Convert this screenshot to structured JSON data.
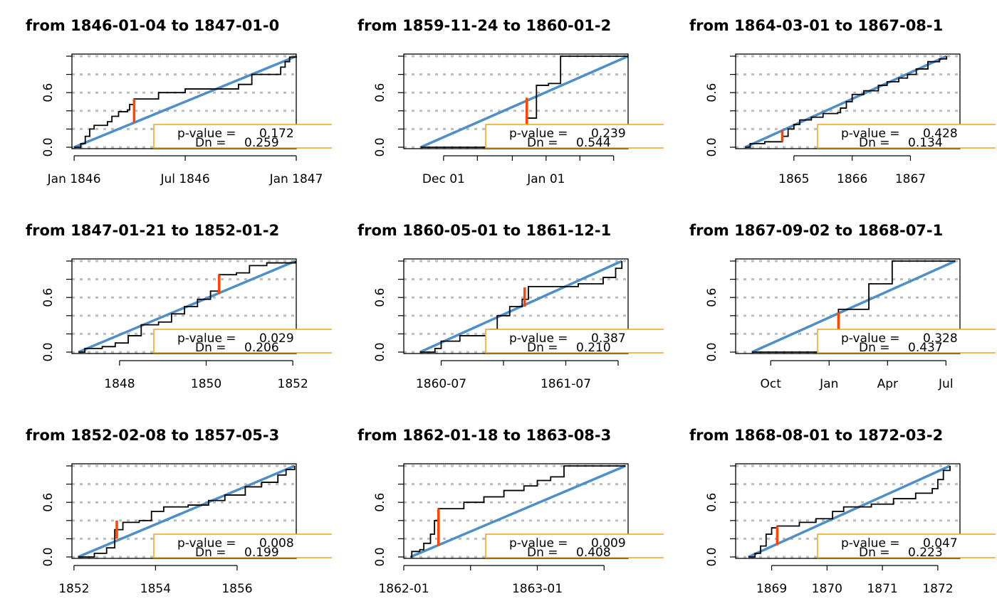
{
  "chart_data": [
    {
      "type": "line",
      "title": "from 1846-01-04 to 1847-01-0",
      "x_range": [
        1846.0,
        1847.0
      ],
      "xlim": [
        1845.99,
        1847.0
      ],
      "ylim": [
        0,
        1
      ],
      "x_ticks": [
        {
          "value": 1846.0,
          "label": "Jan 1846"
        },
        {
          "value": 1846.5,
          "label": "Jul 1846"
        },
        {
          "value": 1847.0,
          "label": "Jan 1847"
        }
      ],
      "y_ticks": [
        {
          "value": 0,
          "label": "0.0"
        },
        {
          "value": 0.2,
          "label": ""
        },
        {
          "value": 0.4,
          "label": ""
        },
        {
          "value": 0.6,
          "label": "0.6"
        },
        {
          "value": 0.8,
          "label": ""
        },
        {
          "value": 1.0,
          "label": ""
        }
      ],
      "grid_y": [
        0,
        0.2,
        0.4,
        0.6,
        0.8,
        1.0
      ],
      "ecdf": [
        [
          1846.0,
          0.0
        ],
        [
          1846.03,
          0.04
        ],
        [
          1846.05,
          0.12
        ],
        [
          1846.07,
          0.2
        ],
        [
          1846.09,
          0.24
        ],
        [
          1846.15,
          0.28
        ],
        [
          1846.17,
          0.34
        ],
        [
          1846.2,
          0.39
        ],
        [
          1846.24,
          0.41
        ],
        [
          1846.25,
          0.47
        ],
        [
          1846.27,
          0.53
        ],
        [
          1846.38,
          0.6
        ],
        [
          1846.5,
          0.64
        ],
        [
          1846.74,
          0.69
        ],
        [
          1846.8,
          0.8
        ],
        [
          1846.93,
          0.88
        ],
        [
          1846.95,
          0.94
        ],
        [
          1846.97,
          0.99
        ],
        [
          1847.0,
          1.0
        ]
      ],
      "dn_x": 1846.27,
      "dn_range": [
        0.27,
        0.53
      ],
      "legend": {
        "p_label": "p-value = ",
        "p_value": "0.172",
        "dn_label": "Dn = ",
        "dn_value": "0.259"
      }
    },
    {
      "type": "line",
      "title": "from 1859-11-24 to 1860-01-2",
      "x_range": [
        1859.899,
        1860.071
      ],
      "xlim": [
        1859.885,
        1860.071
      ],
      "ylim": [
        0,
        1
      ],
      "x_ticks": [
        {
          "value": 1859.918,
          "label": "Dec 01"
        },
        {
          "value": 1860.003,
          "label": "Jan 01"
        }
      ],
      "y_ticks": [
        {
          "value": 0,
          "label": "0.0"
        },
        {
          "value": 0.2,
          "label": ""
        },
        {
          "value": 0.4,
          "label": ""
        },
        {
          "value": 0.6,
          "label": "0.6"
        },
        {
          "value": 0.8,
          "label": ""
        },
        {
          "value": 1.0,
          "label": ""
        }
      ],
      "extra_x_ticks": [
        1859.946,
        1859.975,
        1860.031,
        1860.059
      ],
      "grid_y": [
        0,
        0.2,
        0.4,
        0.6,
        0.8,
        1.0
      ],
      "ecdf": [
        [
          1859.899,
          0.0
        ],
        [
          1859.987,
          0.0
        ],
        [
          1859.987,
          0.32
        ],
        [
          1859.995,
          0.32
        ],
        [
          1859.995,
          0.68
        ],
        [
          1860.005,
          0.68
        ],
        [
          1860.005,
          0.7
        ],
        [
          1860.015,
          0.7
        ],
        [
          1860.015,
          1.0
        ],
        [
          1860.071,
          1.0
        ]
      ],
      "dn_x": 1859.987,
      "dn_range": [
        0.0,
        0.544
      ],
      "legend": {
        "p_label": "p-value = ",
        "p_value": "0.239",
        "dn_label": "Dn = ",
        "dn_value": "0.544"
      }
    },
    {
      "type": "line",
      "title": "from 1864-03-01 to 1867-08-1",
      "x_range": [
        1864.164,
        1867.62
      ],
      "xlim": [
        1864.0,
        1867.85
      ],
      "ylim": [
        0,
        1
      ],
      "x_ticks": [
        {
          "value": 1865,
          "label": "1865"
        },
        {
          "value": 1866,
          "label": "1866"
        },
        {
          "value": 1867,
          "label": "1867"
        }
      ],
      "y_ticks": [
        {
          "value": 0,
          "label": "0.0"
        },
        {
          "value": 0.2,
          "label": ""
        },
        {
          "value": 0.4,
          "label": ""
        },
        {
          "value": 0.6,
          "label": "0.6"
        },
        {
          "value": 0.8,
          "label": ""
        },
        {
          "value": 1.0,
          "label": ""
        }
      ],
      "grid_y": [
        0,
        0.2,
        0.4,
        0.6,
        0.8,
        1.0
      ],
      "ecdf": [
        [
          1864.164,
          0.0
        ],
        [
          1864.25,
          0.04
        ],
        [
          1864.45,
          0.04
        ],
        [
          1864.5,
          0.06
        ],
        [
          1864.75,
          0.06
        ],
        [
          1864.8,
          0.12
        ],
        [
          1864.9,
          0.2
        ],
        [
          1865.0,
          0.25
        ],
        [
          1865.1,
          0.3
        ],
        [
          1865.3,
          0.33
        ],
        [
          1865.5,
          0.37
        ],
        [
          1865.75,
          0.38
        ],
        [
          1865.8,
          0.43
        ],
        [
          1865.9,
          0.5
        ],
        [
          1866.0,
          0.58
        ],
        [
          1866.2,
          0.62
        ],
        [
          1866.45,
          0.68
        ],
        [
          1866.6,
          0.72
        ],
        [
          1866.8,
          0.76
        ],
        [
          1866.95,
          0.8
        ],
        [
          1867.1,
          0.86
        ],
        [
          1867.3,
          0.94
        ],
        [
          1867.5,
          0.97
        ],
        [
          1867.62,
          1.0
        ]
      ],
      "dn_x": 1864.8,
      "dn_range": [
        0.06,
        0.19
      ],
      "legend": {
        "p_label": "p-value = ",
        "p_value": "0.428",
        "dn_label": "Dn = ",
        "dn_value": "0.134"
      }
    },
    {
      "type": "line",
      "title": "from 1847-01-21 to 1852-01-2",
      "x_range": [
        1847.05,
        1852.06
      ],
      "xlim": [
        1846.9,
        1852.08
      ],
      "ylim": [
        0,
        1
      ],
      "x_ticks": [
        {
          "value": 1848,
          "label": "1848"
        },
        {
          "value": 1850,
          "label": "1850"
        },
        {
          "value": 1852,
          "label": "1852"
        }
      ],
      "y_ticks": [
        {
          "value": 0,
          "label": "0.0"
        },
        {
          "value": 0.2,
          "label": ""
        },
        {
          "value": 0.4,
          "label": ""
        },
        {
          "value": 0.6,
          "label": "0.6"
        },
        {
          "value": 0.8,
          "label": ""
        },
        {
          "value": 1.0,
          "label": ""
        }
      ],
      "grid_y": [
        0,
        0.2,
        0.4,
        0.6,
        0.8,
        1.0
      ],
      "ecdf": [
        [
          1847.05,
          0.0
        ],
        [
          1847.2,
          0.04
        ],
        [
          1847.6,
          0.06
        ],
        [
          1847.9,
          0.1
        ],
        [
          1848.2,
          0.18
        ],
        [
          1848.5,
          0.3
        ],
        [
          1848.9,
          0.33
        ],
        [
          1849.2,
          0.42
        ],
        [
          1849.5,
          0.5
        ],
        [
          1849.8,
          0.58
        ],
        [
          1850.1,
          0.67
        ],
        [
          1850.3,
          0.85
        ],
        [
          1850.7,
          0.87
        ],
        [
          1851.0,
          0.95
        ],
        [
          1851.4,
          0.98
        ],
        [
          1852.06,
          1.0
        ]
      ],
      "dn_x": 1850.3,
      "dn_range": [
        0.64,
        0.85
      ],
      "legend": {
        "p_label": "p-value = ",
        "p_value": "0.029",
        "dn_label": "Dn = ",
        "dn_value": "0.206"
      }
    },
    {
      "type": "line",
      "title": "from 1860-05-01 to 1861-12-1",
      "x_range": [
        1860.33,
        1861.95
      ],
      "xlim": [
        1860.2,
        1862.0
      ],
      "ylim": [
        0,
        1
      ],
      "x_ticks": [
        {
          "value": 1860.5,
          "label": "1860-07"
        },
        {
          "value": 1861.5,
          "label": "1861-07"
        }
      ],
      "y_ticks": [
        {
          "value": 0,
          "label": "0.0"
        },
        {
          "value": 0.2,
          "label": ""
        },
        {
          "value": 0.4,
          "label": ""
        },
        {
          "value": 0.6,
          "label": "0.6"
        },
        {
          "value": 0.8,
          "label": ""
        },
        {
          "value": 1.0,
          "label": ""
        }
      ],
      "extra_x_ticks": [
        1861.0,
        1861.92
      ],
      "grid_y": [
        0,
        0.2,
        0.4,
        0.6,
        0.8,
        1.0
      ],
      "ecdf": [
        [
          1860.33,
          0.0
        ],
        [
          1860.45,
          0.04
        ],
        [
          1860.5,
          0.12
        ],
        [
          1860.65,
          0.18
        ],
        [
          1860.9,
          0.25
        ],
        [
          1860.95,
          0.4
        ],
        [
          1861.05,
          0.5
        ],
        [
          1861.15,
          0.58
        ],
        [
          1861.2,
          0.72
        ],
        [
          1861.6,
          0.75
        ],
        [
          1861.8,
          0.82
        ],
        [
          1861.9,
          0.92
        ],
        [
          1861.95,
          1.0
        ]
      ],
      "dn_x": 1861.17,
      "dn_range": [
        0.5,
        0.71
      ],
      "legend": {
        "p_label": "p-value = ",
        "p_value": "0.387",
        "dn_label": "Dn = ",
        "dn_value": "0.210"
      }
    },
    {
      "type": "line",
      "title": "from 1867-09-02 to 1868-07-1",
      "x_range": [
        1867.67,
        1868.54
      ],
      "xlim": [
        1867.6,
        1868.56
      ],
      "ylim": [
        0,
        1
      ],
      "x_ticks": [
        {
          "value": 1867.75,
          "label": "Oct"
        },
        {
          "value": 1868.0,
          "label": "Jan"
        },
        {
          "value": 1868.25,
          "label": "Apr"
        },
        {
          "value": 1868.5,
          "label": "Jul"
        }
      ],
      "y_ticks": [
        {
          "value": 0,
          "label": "0.0"
        },
        {
          "value": 0.2,
          "label": ""
        },
        {
          "value": 0.4,
          "label": ""
        },
        {
          "value": 0.6,
          "label": "0.6"
        },
        {
          "value": 0.8,
          "label": ""
        },
        {
          "value": 1.0,
          "label": ""
        }
      ],
      "grid_y": [
        0,
        0.2,
        0.4,
        0.6,
        0.8,
        1.0
      ],
      "ecdf": [
        [
          1867.67,
          0.0
        ],
        [
          1868.04,
          0.0
        ],
        [
          1868.04,
          0.47
        ],
        [
          1868.17,
          0.47
        ],
        [
          1868.17,
          0.75
        ],
        [
          1868.27,
          0.75
        ],
        [
          1868.27,
          1.0
        ],
        [
          1868.54,
          1.0
        ]
      ],
      "dn_x": 1868.04,
      "dn_range": [
        0.0,
        0.437
      ],
      "legend": {
        "p_label": "p-value = ",
        "p_value": "0.328",
        "dn_label": "Dn = ",
        "dn_value": "0.437"
      }
    },
    {
      "type": "line",
      "title": "from 1852-02-08 to 1857-05-3",
      "x_range": [
        1852.1,
        1857.41
      ],
      "xlim": [
        1851.95,
        1857.45
      ],
      "ylim": [
        0,
        1
      ],
      "x_ticks": [
        {
          "value": 1852,
          "label": "1852"
        },
        {
          "value": 1854,
          "label": "1854"
        },
        {
          "value": 1856,
          "label": "1856"
        }
      ],
      "y_ticks": [
        {
          "value": 0,
          "label": "0.0"
        },
        {
          "value": 0.2,
          "label": ""
        },
        {
          "value": 0.4,
          "label": ""
        },
        {
          "value": 0.6,
          "label": "0.6"
        },
        {
          "value": 0.8,
          "label": ""
        },
        {
          "value": 1.0,
          "label": ""
        }
      ],
      "grid_y": [
        0,
        0.2,
        0.4,
        0.6,
        0.8,
        1.0
      ],
      "ecdf": [
        [
          1852.1,
          0.0
        ],
        [
          1852.5,
          0.04
        ],
        [
          1852.8,
          0.1
        ],
        [
          1853.0,
          0.3
        ],
        [
          1853.2,
          0.38
        ],
        [
          1853.6,
          0.4
        ],
        [
          1853.9,
          0.5
        ],
        [
          1854.2,
          0.55
        ],
        [
          1854.8,
          0.57
        ],
        [
          1855.3,
          0.62
        ],
        [
          1855.7,
          0.68
        ],
        [
          1856.2,
          0.77
        ],
        [
          1856.6,
          0.82
        ],
        [
          1857.0,
          0.9
        ],
        [
          1857.2,
          0.96
        ],
        [
          1857.41,
          1.0
        ]
      ],
      "dn_x": 1853.05,
      "dn_range": [
        0.2,
        0.4
      ],
      "legend": {
        "p_label": "p-value = ",
        "p_value": "0.008",
        "dn_label": "Dn = ",
        "dn_value": "0.199"
      }
    },
    {
      "type": "line",
      "title": "from 1862-01-18 to 1863-08-3",
      "x_range": [
        1862.05,
        1863.66
      ],
      "xlim": [
        1862.0,
        1863.68
      ],
      "ylim": [
        0,
        1
      ],
      "x_ticks": [
        {
          "value": 1862.0,
          "label": "1862-01"
        },
        {
          "value": 1863.0,
          "label": "1863-01"
        }
      ],
      "y_ticks": [
        {
          "value": 0,
          "label": "0.0"
        },
        {
          "value": 0.2,
          "label": ""
        },
        {
          "value": 0.4,
          "label": ""
        },
        {
          "value": 0.6,
          "label": "0.6"
        },
        {
          "value": 0.8,
          "label": ""
        },
        {
          "value": 1.0,
          "label": ""
        }
      ],
      "extra_x_ticks": [
        1862.5,
        1863.5
      ],
      "grid_y": [
        0,
        0.2,
        0.4,
        0.6,
        0.8,
        1.0
      ],
      "ecdf": [
        [
          1862.05,
          0.0
        ],
        [
          1862.06,
          0.06
        ],
        [
          1862.12,
          0.08
        ],
        [
          1862.15,
          0.15
        ],
        [
          1862.2,
          0.25
        ],
        [
          1862.23,
          0.4
        ],
        [
          1862.26,
          0.53
        ],
        [
          1862.45,
          0.6
        ],
        [
          1862.6,
          0.66
        ],
        [
          1862.75,
          0.73
        ],
        [
          1862.9,
          0.78
        ],
        [
          1863.0,
          0.84
        ],
        [
          1863.1,
          0.88
        ],
        [
          1863.2,
          1.0
        ],
        [
          1863.66,
          1.0
        ]
      ],
      "dn_x": 1862.26,
      "dn_range": [
        0.12,
        0.53
      ],
      "legend": {
        "p_label": "p-value = ",
        "p_value": "0.009",
        "dn_label": "Dn = ",
        "dn_value": "0.408"
      }
    },
    {
      "type": "line",
      "title": "from 1868-08-01 to 1872-03-2",
      "x_range": [
        1868.58,
        1872.22
      ],
      "xlim": [
        1868.35,
        1872.4
      ],
      "ylim": [
        0,
        1
      ],
      "x_ticks": [
        {
          "value": 1869,
          "label": "1869"
        },
        {
          "value": 1870,
          "label": "1870"
        },
        {
          "value": 1871,
          "label": "1871"
        },
        {
          "value": 1872,
          "label": "1872"
        }
      ],
      "y_ticks": [
        {
          "value": 0,
          "label": "0.0"
        },
        {
          "value": 0.2,
          "label": ""
        },
        {
          "value": 0.4,
          "label": ""
        },
        {
          "value": 0.6,
          "label": "0.6"
        },
        {
          "value": 0.8,
          "label": ""
        },
        {
          "value": 1.0,
          "label": ""
        }
      ],
      "grid_y": [
        0,
        0.2,
        0.4,
        0.6,
        0.8,
        1.0
      ],
      "ecdf": [
        [
          1868.58,
          0.0
        ],
        [
          1868.7,
          0.04
        ],
        [
          1868.8,
          0.12
        ],
        [
          1868.9,
          0.25
        ],
        [
          1869.0,
          0.32
        ],
        [
          1869.1,
          0.34
        ],
        [
          1869.5,
          0.38
        ],
        [
          1869.8,
          0.42
        ],
        [
          1870.1,
          0.5
        ],
        [
          1870.3,
          0.55
        ],
        [
          1870.8,
          0.58
        ],
        [
          1871.2,
          0.64
        ],
        [
          1871.6,
          0.7
        ],
        [
          1871.9,
          0.75
        ],
        [
          1872.0,
          0.85
        ],
        [
          1872.1,
          0.95
        ],
        [
          1872.22,
          1.0
        ]
      ],
      "dn_x": 1869.1,
      "dn_range": [
        0.13,
        0.34
      ],
      "legend": {
        "p_label": "p-value = ",
        "p_value": "0.047",
        "dn_label": "Dn = ",
        "dn_value": "0.223"
      }
    }
  ],
  "colors": {
    "ecdf": "#000000",
    "uniform": "#4f8fc7",
    "dn_segment": "#ff4500",
    "legend_border": "#f5a623",
    "grid": "#bdbdbd",
    "axis": "#000000"
  }
}
